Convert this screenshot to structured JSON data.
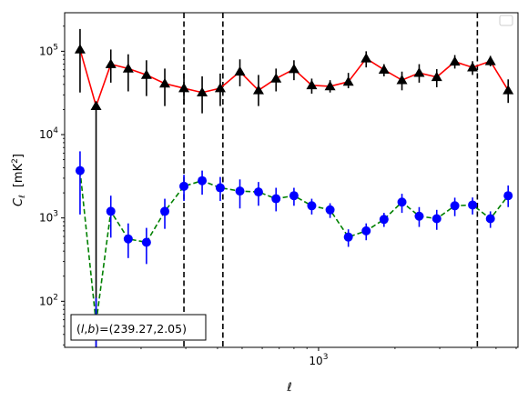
{
  "chart_data": {
    "type": "scatter",
    "xscale": "log",
    "yscale": "log",
    "xlabel": "ℓ",
    "ylabel_main": "C",
    "ylabel_sub": "ℓ",
    "ylabel_unit": "[mK",
    "ylabel_unit_sup": "2",
    "ylabel_unit_close": "]",
    "xlim": [
      100,
      6100
    ],
    "ylim": [
      28,
      290000
    ],
    "x_ticks": [
      {
        "value": 1000,
        "base": "10",
        "exp": "3"
      }
    ],
    "y_ticks": [
      {
        "value": 100,
        "base": "10",
        "exp": "2"
      },
      {
        "value": 1000,
        "base": "10",
        "exp": "3"
      },
      {
        "value": 10000,
        "base": "10",
        "exp": "4"
      },
      {
        "value": 100000,
        "base": "10",
        "exp": "5"
      }
    ],
    "legend": "top-right",
    "annotation": {
      "prefix": "(",
      "l": "l",
      "comma": ",",
      "b": "b",
      "value": ")=(239.27,2.05)"
    },
    "vlines": [
      295,
      420,
      4220
    ],
    "series": [
      {
        "line_color": "#ff0000",
        "line_style": "solid",
        "marker": "triangle",
        "marker_color": "#000000",
        "err_color": "#000000",
        "points": [
          {
            "x": 115,
            "y": 105000,
            "lo": 32000,
            "hi": 185000
          },
          {
            "x": 133,
            "y": 22000,
            "lo": 28,
            "hi": 22000
          },
          {
            "x": 152,
            "y": 70000,
            "lo": 42000,
            "hi": 105000
          },
          {
            "x": 178,
            "y": 62000,
            "lo": 33000,
            "hi": 92000
          },
          {
            "x": 210,
            "y": 52000,
            "lo": 29000,
            "hi": 78000
          },
          {
            "x": 248,
            "y": 41000,
            "lo": 22000,
            "hi": 62000
          },
          {
            "x": 295,
            "y": 36000,
            "lo": 23000,
            "hi": 54000
          },
          {
            "x": 348,
            "y": 32000,
            "lo": 18000,
            "hi": 50000
          },
          {
            "x": 410,
            "y": 36000,
            "lo": 22000,
            "hi": 54000
          },
          {
            "x": 490,
            "y": 57000,
            "lo": 38000,
            "hi": 80000
          },
          {
            "x": 580,
            "y": 34000,
            "lo": 22000,
            "hi": 52000
          },
          {
            "x": 680,
            "y": 47000,
            "lo": 33000,
            "hi": 62000
          },
          {
            "x": 800,
            "y": 61000,
            "lo": 45000,
            "hi": 78000
          },
          {
            "x": 940,
            "y": 39000,
            "lo": 31000,
            "hi": 47000
          },
          {
            "x": 1110,
            "y": 38000,
            "lo": 32000,
            "hi": 45000
          },
          {
            "x": 1310,
            "y": 43000,
            "lo": 36000,
            "hi": 55000
          },
          {
            "x": 1540,
            "y": 82000,
            "lo": 64000,
            "hi": 100000
          },
          {
            "x": 1810,
            "y": 60000,
            "lo": 50000,
            "hi": 70000
          },
          {
            "x": 2130,
            "y": 45000,
            "lo": 34000,
            "hi": 57000
          },
          {
            "x": 2490,
            "y": 55000,
            "lo": 42000,
            "hi": 70000
          },
          {
            "x": 2920,
            "y": 49000,
            "lo": 37000,
            "hi": 61000
          },
          {
            "x": 3440,
            "y": 75000,
            "lo": 62000,
            "hi": 90000
          },
          {
            "x": 4040,
            "y": 64000,
            "lo": 52000,
            "hi": 76000
          },
          {
            "x": 4750,
            "y": 76000,
            "lo": 66000,
            "hi": 88000
          },
          {
            "x": 5580,
            "y": 34000,
            "lo": 24000,
            "hi": 46000
          }
        ]
      },
      {
        "line_color": "#008000",
        "line_style": "dashed",
        "marker": "circle",
        "marker_color": "#0000ff",
        "err_color": "#0000ff",
        "points": [
          {
            "x": 115,
            "y": 3700,
            "lo": 1100,
            "hi": 6300
          },
          {
            "x": 133,
            "y": 55,
            "lo": 28,
            "hi": 110
          },
          {
            "x": 152,
            "y": 1200,
            "lo": 580,
            "hi": 1850
          },
          {
            "x": 178,
            "y": 560,
            "lo": 330,
            "hi": 860
          },
          {
            "x": 210,
            "y": 510,
            "lo": 280,
            "hi": 760
          },
          {
            "x": 248,
            "y": 1200,
            "lo": 740,
            "hi": 1700
          },
          {
            "x": 295,
            "y": 2400,
            "lo": 1600,
            "hi": 3300
          },
          {
            "x": 348,
            "y": 2800,
            "lo": 1900,
            "hi": 3700
          },
          {
            "x": 410,
            "y": 2300,
            "lo": 1600,
            "hi": 3100
          },
          {
            "x": 490,
            "y": 2100,
            "lo": 1300,
            "hi": 2900
          },
          {
            "x": 580,
            "y": 2050,
            "lo": 1400,
            "hi": 2700
          },
          {
            "x": 680,
            "y": 1700,
            "lo": 1200,
            "hi": 2300
          },
          {
            "x": 800,
            "y": 1850,
            "lo": 1400,
            "hi": 2300
          },
          {
            "x": 940,
            "y": 1400,
            "lo": 1100,
            "hi": 1700
          },
          {
            "x": 1110,
            "y": 1250,
            "lo": 1000,
            "hi": 1500
          },
          {
            "x": 1310,
            "y": 590,
            "lo": 450,
            "hi": 730
          },
          {
            "x": 1540,
            "y": 700,
            "lo": 540,
            "hi": 860
          },
          {
            "x": 1810,
            "y": 960,
            "lo": 780,
            "hi": 1150
          },
          {
            "x": 2130,
            "y": 1550,
            "lo": 1150,
            "hi": 1950
          },
          {
            "x": 2490,
            "y": 1050,
            "lo": 780,
            "hi": 1350
          },
          {
            "x": 2920,
            "y": 980,
            "lo": 720,
            "hi": 1250
          },
          {
            "x": 3440,
            "y": 1400,
            "lo": 1050,
            "hi": 1750
          },
          {
            "x": 4040,
            "y": 1430,
            "lo": 1100,
            "hi": 1760
          },
          {
            "x": 4750,
            "y": 980,
            "lo": 760,
            "hi": 1200
          },
          {
            "x": 5580,
            "y": 1850,
            "lo": 1350,
            "hi": 2450
          }
        ]
      }
    ]
  }
}
